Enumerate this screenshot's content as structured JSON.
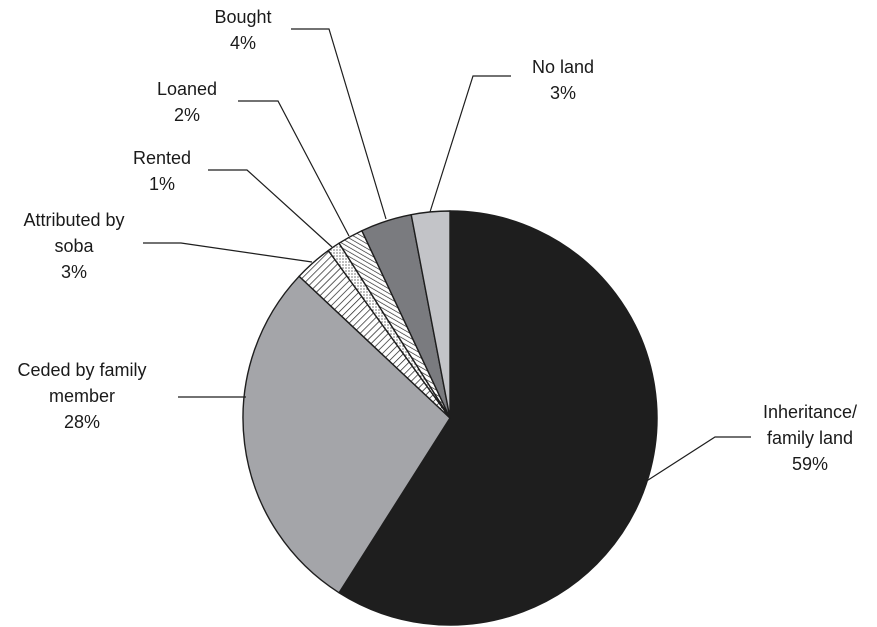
{
  "chart_data": {
    "type": "pie",
    "slices": [
      {
        "label": [
          "Inheritance/",
          "family land"
        ],
        "value": 59,
        "value_label": "59%",
        "color": "#1e1e1e",
        "pattern": "solid"
      },
      {
        "label": [
          "Ceded by family",
          "member"
        ],
        "value": 28,
        "value_label": "28%",
        "color": "#a4a5a9",
        "pattern": "solid"
      },
      {
        "label": [
          "Attributed by",
          "soba"
        ],
        "value": 3,
        "value_label": "3%",
        "color": "#ffffff",
        "pattern": "diagonal-hatch"
      },
      {
        "label": [
          "Rented"
        ],
        "value": 1,
        "value_label": "1%",
        "color": "#ffffff",
        "pattern": "dots"
      },
      {
        "label": [
          "Loaned"
        ],
        "value": 2,
        "value_label": "2%",
        "color": "#ffffff",
        "pattern": "vertical-lines"
      },
      {
        "label": [
          "Bought"
        ],
        "value": 4,
        "value_label": "4%",
        "color": "#7a7b7f",
        "pattern": "solid"
      },
      {
        "label": [
          "No land"
        ],
        "value": 3,
        "value_label": "3%",
        "color": "#c3c4c8",
        "pattern": "solid"
      }
    ],
    "start": "12 o'clock",
    "direction": "clockwise"
  }
}
